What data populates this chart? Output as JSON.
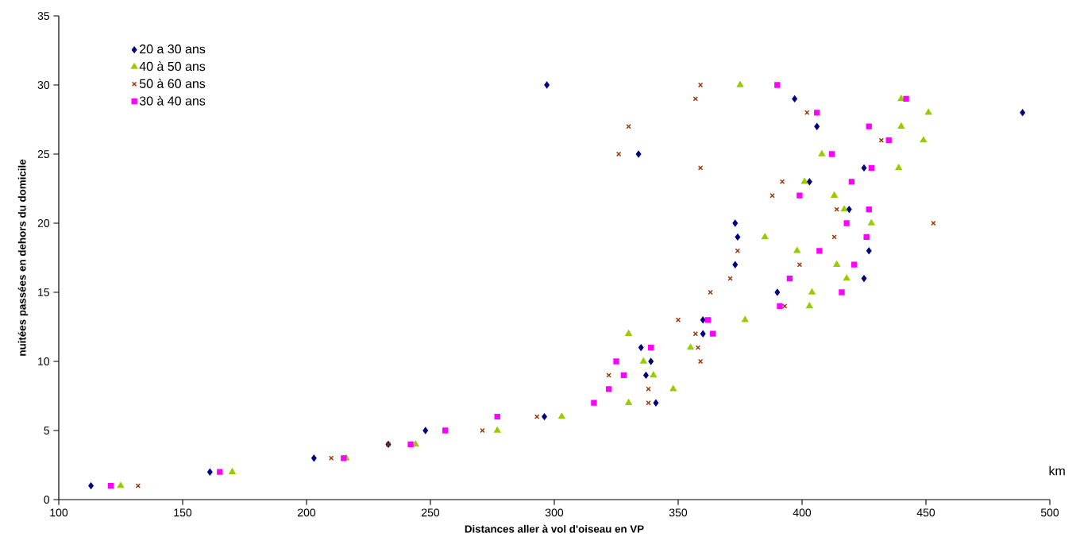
{
  "chart_data": {
    "type": "scatter",
    "xlabel": "Distances aller à vol d'oiseau en VP",
    "ylabel": "nuitées passées en dehors du domicile",
    "annotations": [
      "km"
    ],
    "xlim": [
      100,
      500
    ],
    "ylim": [
      0,
      35
    ],
    "xticks": [
      100,
      150,
      200,
      250,
      300,
      350,
      400,
      450,
      500
    ],
    "yticks": [
      0,
      5,
      10,
      15,
      20,
      25,
      30,
      35
    ],
    "legend": "top left",
    "series": [
      {
        "name": "20 a 30 ans",
        "color": "#000080",
        "marker": "diamond",
        "x": [
          113,
          161,
          203,
          233,
          248,
          296,
          297,
          322,
          334,
          335,
          337,
          339,
          341,
          360,
          360,
          373,
          373,
          374,
          390,
          397,
          403,
          406,
          419,
          425,
          425,
          427,
          489
        ],
        "values": [
          1,
          2,
          3,
          4,
          5,
          6,
          30,
          null,
          25,
          11,
          9,
          10,
          7,
          12,
          13,
          17,
          20,
          19,
          15,
          29,
          23,
          27,
          21,
          24,
          16,
          18,
          28
        ]
      },
      {
        "name": "40 à 50 ans",
        "color": "#99cc00",
        "marker": "triangle",
        "x": [
          125,
          170,
          216,
          244,
          277,
          303,
          330,
          348,
          340,
          336,
          355,
          330,
          377,
          403,
          404,
          418,
          414,
          398,
          385,
          428,
          417,
          413,
          401,
          439,
          408,
          449,
          440,
          451,
          440,
          375
        ],
        "values": [
          1,
          2,
          3,
          4,
          5,
          6,
          7,
          8,
          9,
          10,
          11,
          12,
          13,
          14,
          15,
          16,
          17,
          18,
          19,
          20,
          21,
          22,
          23,
          24,
          25,
          26,
          27,
          28,
          29,
          30
        ]
      },
      {
        "name": "50 à 60 ans",
        "color": "#993300",
        "marker": "cross",
        "x": [
          132,
          210,
          233,
          271,
          293,
          338,
          338,
          322,
          359,
          358,
          357,
          350,
          393,
          363,
          371,
          399,
          374,
          413,
          453,
          414,
          388,
          392,
          359,
          326,
          432,
          330,
          402,
          357,
          359
        ],
        "values": [
          1,
          3,
          4,
          5,
          6,
          7,
          8,
          9,
          10,
          11,
          12,
          13,
          14,
          15,
          16,
          17,
          18,
          19,
          20,
          21,
          22,
          23,
          24,
          25,
          26,
          27,
          28,
          29,
          30
        ]
      },
      {
        "name": "30 à 40 ans",
        "color": "#ff00ff",
        "marker": "square",
        "x": [
          121,
          165,
          215,
          242,
          256,
          277,
          316,
          322,
          328,
          325,
          339,
          364,
          362,
          391,
          416,
          395,
          421,
          407,
          426,
          418,
          427,
          399,
          420,
          428,
          412,
          435,
          427,
          406,
          442,
          390
        ],
        "values": [
          1,
          2,
          3,
          4,
          5,
          6,
          7,
          8,
          9,
          10,
          11,
          12,
          13,
          14,
          15,
          16,
          17,
          18,
          19,
          20,
          21,
          22,
          23,
          24,
          25,
          26,
          27,
          28,
          29,
          30
        ]
      }
    ]
  }
}
